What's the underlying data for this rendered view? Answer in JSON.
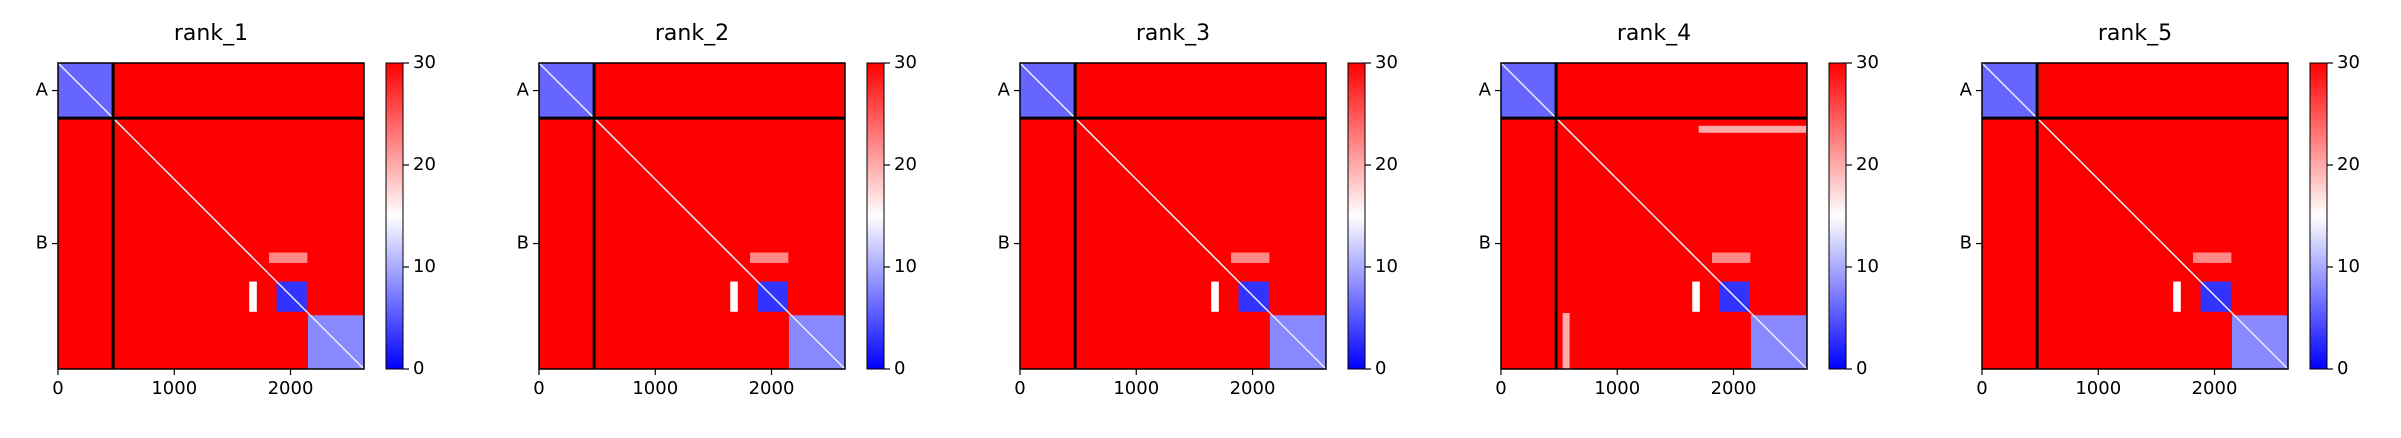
{
  "chart_data": [
    {
      "type": "heatmap",
      "title": "rank_1",
      "xlim": [
        0,
        2632
      ],
      "ylim": [
        2632,
        0
      ],
      "xticks": [
        0,
        1000,
        2000
      ],
      "yticks": [
        {
          "value": 237,
          "label": "A"
        },
        {
          "value": 1553,
          "label": "B"
        }
      ],
      "boundaries": [
        474
      ],
      "colormap": [
        "#0000ff",
        "#ffffff",
        "#ff0000"
      ],
      "clim": [
        0,
        30
      ],
      "cticks": [
        0,
        10,
        20,
        30
      ],
      "background_value": 30,
      "diagonal_value": 14,
      "regions": [
        {
          "x": [
            0,
            474
          ],
          "y": [
            0,
            474
          ],
          "value": 6
        },
        {
          "x": [
            1880,
            2140
          ],
          "y": [
            1880,
            2140
          ],
          "value": 3
        },
        {
          "x": [
            2150,
            2632
          ],
          "y": [
            2170,
            2632
          ],
          "value": 8
        },
        {
          "x": [
            1645,
            1710
          ],
          "y": [
            1880,
            2140
          ],
          "value": 15
        },
        {
          "x": [
            1815,
            2145
          ],
          "y": [
            1630,
            1720
          ],
          "value": 22
        }
      ]
    },
    {
      "type": "heatmap",
      "title": "rank_2",
      "xlim": [
        0,
        2632
      ],
      "ylim": [
        2632,
        0
      ],
      "xticks": [
        0,
        1000,
        2000
      ],
      "yticks": [
        {
          "value": 237,
          "label": "A"
        },
        {
          "value": 1553,
          "label": "B"
        }
      ],
      "boundaries": [
        474
      ],
      "colormap": [
        "#0000ff",
        "#ffffff",
        "#ff0000"
      ],
      "clim": [
        0,
        30
      ],
      "cticks": [
        0,
        10,
        20,
        30
      ],
      "background_value": 30,
      "diagonal_value": 14,
      "regions": [
        {
          "x": [
            0,
            474
          ],
          "y": [
            0,
            474
          ],
          "value": 6
        },
        {
          "x": [
            1880,
            2140
          ],
          "y": [
            1880,
            2140
          ],
          "value": 3
        },
        {
          "x": [
            2150,
            2632
          ],
          "y": [
            2170,
            2632
          ],
          "value": 8
        },
        {
          "x": [
            1645,
            1710
          ],
          "y": [
            1880,
            2140
          ],
          "value": 15
        },
        {
          "x": [
            1815,
            2145
          ],
          "y": [
            1630,
            1720
          ],
          "value": 22
        }
      ]
    },
    {
      "type": "heatmap",
      "title": "rank_3",
      "xlim": [
        0,
        2632
      ],
      "ylim": [
        2632,
        0
      ],
      "xticks": [
        0,
        1000,
        2000
      ],
      "yticks": [
        {
          "value": 237,
          "label": "A"
        },
        {
          "value": 1553,
          "label": "B"
        }
      ],
      "boundaries": [
        474
      ],
      "colormap": [
        "#0000ff",
        "#ffffff",
        "#ff0000"
      ],
      "clim": [
        0,
        30
      ],
      "cticks": [
        0,
        10,
        20,
        30
      ],
      "background_value": 30,
      "diagonal_value": 14,
      "regions": [
        {
          "x": [
            0,
            474
          ],
          "y": [
            0,
            474
          ],
          "value": 6
        },
        {
          "x": [
            1880,
            2140
          ],
          "y": [
            1880,
            2140
          ],
          "value": 3
        },
        {
          "x": [
            2150,
            2632
          ],
          "y": [
            2170,
            2632
          ],
          "value": 8
        },
        {
          "x": [
            1645,
            1710
          ],
          "y": [
            1880,
            2140
          ],
          "value": 15
        },
        {
          "x": [
            1815,
            2145
          ],
          "y": [
            1630,
            1720
          ],
          "value": 22
        }
      ]
    },
    {
      "type": "heatmap",
      "title": "rank_4",
      "xlim": [
        0,
        2632
      ],
      "ylim": [
        2632,
        0
      ],
      "xticks": [
        0,
        1000,
        2000
      ],
      "yticks": [
        {
          "value": 237,
          "label": "A"
        },
        {
          "value": 1553,
          "label": "B"
        }
      ],
      "boundaries": [
        474
      ],
      "colormap": [
        "#0000ff",
        "#ffffff",
        "#ff0000"
      ],
      "clim": [
        0,
        30
      ],
      "cticks": [
        0,
        10,
        20,
        30
      ],
      "background_value": 30,
      "diagonal_value": 14,
      "regions": [
        {
          "x": [
            0,
            474
          ],
          "y": [
            0,
            474
          ],
          "value": 6
        },
        {
          "x": [
            1880,
            2140
          ],
          "y": [
            1880,
            2140
          ],
          "value": 3
        },
        {
          "x": [
            2150,
            2632
          ],
          "y": [
            2170,
            2632
          ],
          "value": 8
        },
        {
          "x": [
            1645,
            1710
          ],
          "y": [
            1880,
            2140
          ],
          "value": 15
        },
        {
          "x": [
            1815,
            2145
          ],
          "y": [
            1630,
            1720
          ],
          "value": 22
        },
        {
          "x": [
            1700,
            2632
          ],
          "y": [
            540,
            600
          ],
          "value": 20
        },
        {
          "x": [
            530,
            590
          ],
          "y": [
            2150,
            2632
          ],
          "value": 20
        }
      ]
    },
    {
      "type": "heatmap",
      "title": "rank_5",
      "xlim": [
        0,
        2632
      ],
      "ylim": [
        2632,
        0
      ],
      "xticks": [
        0,
        1000,
        2000
      ],
      "yticks": [
        {
          "value": 237,
          "label": "A"
        },
        {
          "value": 1553,
          "label": "B"
        }
      ],
      "boundaries": [
        474
      ],
      "colormap": [
        "#0000ff",
        "#ffffff",
        "#ff0000"
      ],
      "clim": [
        0,
        30
      ],
      "cticks": [
        0,
        10,
        20,
        30
      ],
      "background_value": 30,
      "diagonal_value": 14,
      "regions": [
        {
          "x": [
            0,
            474
          ],
          "y": [
            0,
            474
          ],
          "value": 6
        },
        {
          "x": [
            1880,
            2140
          ],
          "y": [
            1880,
            2140
          ],
          "value": 3
        },
        {
          "x": [
            2150,
            2632
          ],
          "y": [
            2170,
            2632
          ],
          "value": 8
        },
        {
          "x": [
            1645,
            1710
          ],
          "y": [
            1880,
            2140
          ],
          "value": 15
        },
        {
          "x": [
            1815,
            2145
          ],
          "y": [
            1630,
            1720
          ],
          "value": 22
        }
      ]
    }
  ]
}
